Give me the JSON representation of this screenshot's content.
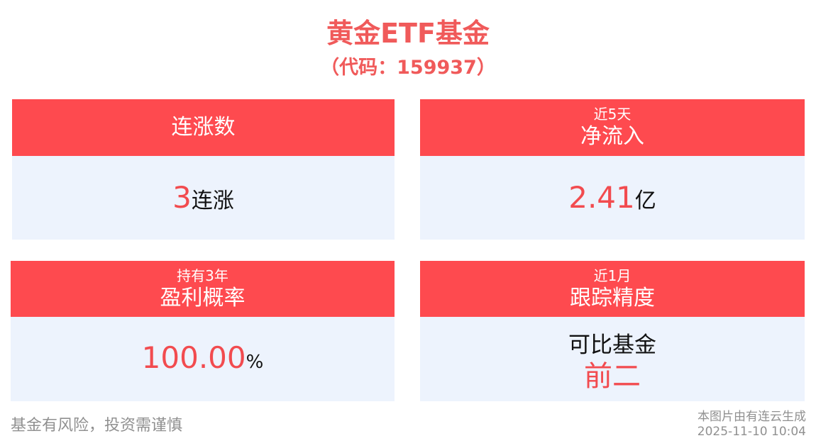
{
  "header": {
    "title": "黄金ETF基金",
    "code": "（代码：159937）"
  },
  "cards": {
    "streak": {
      "title": "连涨数",
      "value": "3",
      "unit": "连涨"
    },
    "net_inflow": {
      "period": "近5天",
      "title": "净流入",
      "value": "2.41",
      "unit": "亿"
    },
    "profit_rate": {
      "period": "持有3年",
      "title": "盈利概率",
      "value": "100.00",
      "unit": "%"
    },
    "tracking": {
      "period": "近1月",
      "title": "跟踪精度",
      "line1": "可比基金",
      "line2": "前二"
    }
  },
  "footer": {
    "disclaimer": "基金有风险，投资需谨慎",
    "source": "本图片由有连云生成",
    "timestamp": "2025-11-10 10:04"
  },
  "colors": {
    "accent": "#fe4a4f",
    "card_background": "#edf3fd",
    "footer_text": "#909090"
  }
}
